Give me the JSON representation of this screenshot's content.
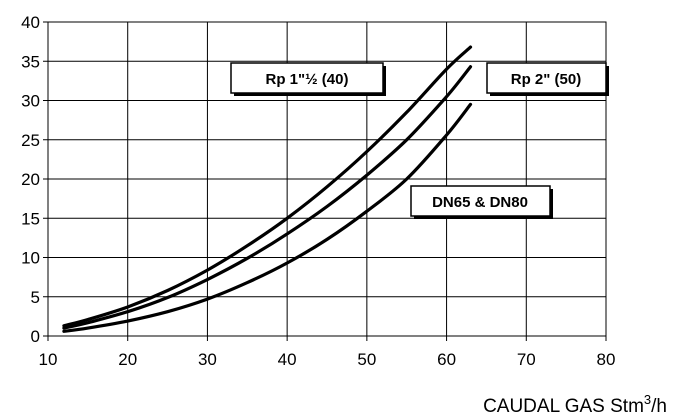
{
  "chart_data": {
    "type": "line",
    "xlabel": "CAUDAL GAS Stm",
    "xlabel_sup": "3",
    "xlabel_suffix": "/h",
    "ylabel": "",
    "xlim": [
      10,
      80
    ],
    "ylim": [
      0,
      40
    ],
    "x_ticks": [
      "10",
      "20",
      "30",
      "40",
      "50",
      "60",
      "70",
      "80"
    ],
    "y_ticks": [
      "0",
      "5",
      "10",
      "15",
      "20",
      "25",
      "30",
      "35",
      "40"
    ],
    "grid": true,
    "legend": "none",
    "series": [
      {
        "name": "Rp 1\"½ (40)",
        "x": [
          12,
          15,
          20,
          25,
          30,
          35,
          40,
          45,
          50,
          55,
          60,
          63
        ],
        "y": [
          1.3,
          2.1,
          3.7,
          5.8,
          8.4,
          11.5,
          15.0,
          19.0,
          23.5,
          28.5,
          34.0,
          36.8
        ]
      },
      {
        "name": "Rp 2\" (50)",
        "x": [
          12,
          15,
          20,
          25,
          30,
          35,
          40,
          45,
          50,
          55,
          60,
          63
        ],
        "y": [
          1.0,
          1.7,
          3.1,
          4.9,
          7.2,
          9.9,
          13.0,
          16.5,
          20.5,
          25.0,
          30.5,
          34.3
        ]
      },
      {
        "name": "DN65 & DN80",
        "x": [
          12,
          15,
          20,
          25,
          30,
          35,
          40,
          45,
          50,
          55,
          60,
          63
        ],
        "y": [
          0.6,
          1.0,
          1.9,
          3.1,
          4.7,
          6.8,
          9.3,
          12.3,
          15.9,
          20.0,
          25.6,
          29.5
        ]
      }
    ],
    "annotations": [
      "Rp 1\"½ (40)",
      "Rp 2\" (50)",
      "DN65 & DN80"
    ]
  }
}
